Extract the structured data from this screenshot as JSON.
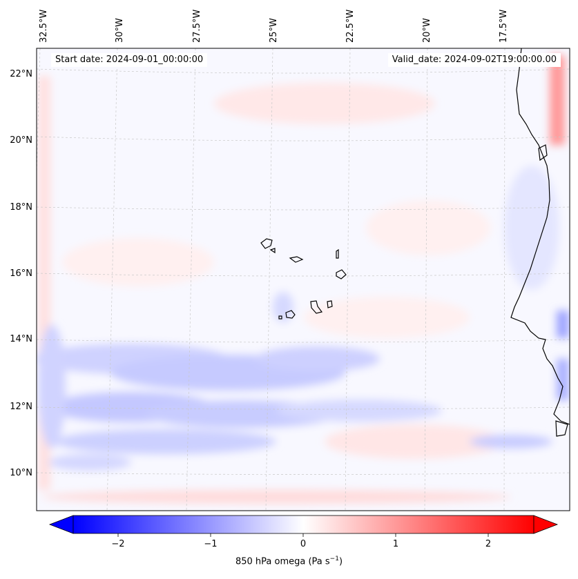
{
  "annotations": {
    "start_date": "Start date: 2024-09-01_00:00:00",
    "valid_date": "Valid_date: 2024-09-02T19:00:00.00"
  },
  "map": {
    "lon_labels": [
      "32.5°W",
      "30°W",
      "27.5°W",
      "25°W",
      "22.5°W",
      "20°W",
      "17.5°W"
    ],
    "lat_labels": [
      "22°N",
      "20°N",
      "18°N",
      "16°N",
      "14°N",
      "12°N",
      "10°N"
    ],
    "field": "850 hPa omega",
    "gridlines": "dashed",
    "features": [
      "Cape Verde islands",
      "West African coastline"
    ]
  },
  "colorbar": {
    "label_text": "850 hPa omega (Pa s",
    "label_exp": "−1",
    "label_close": ")",
    "tick_labels": [
      "−2",
      "−1",
      "0",
      "1",
      "2"
    ],
    "range": [
      -2.6,
      2.6
    ],
    "extend": "both",
    "colormap": "bwr",
    "colors": {
      "low": "#0000ff",
      "mid": "#ffffff",
      "high": "#ff0000"
    }
  }
}
